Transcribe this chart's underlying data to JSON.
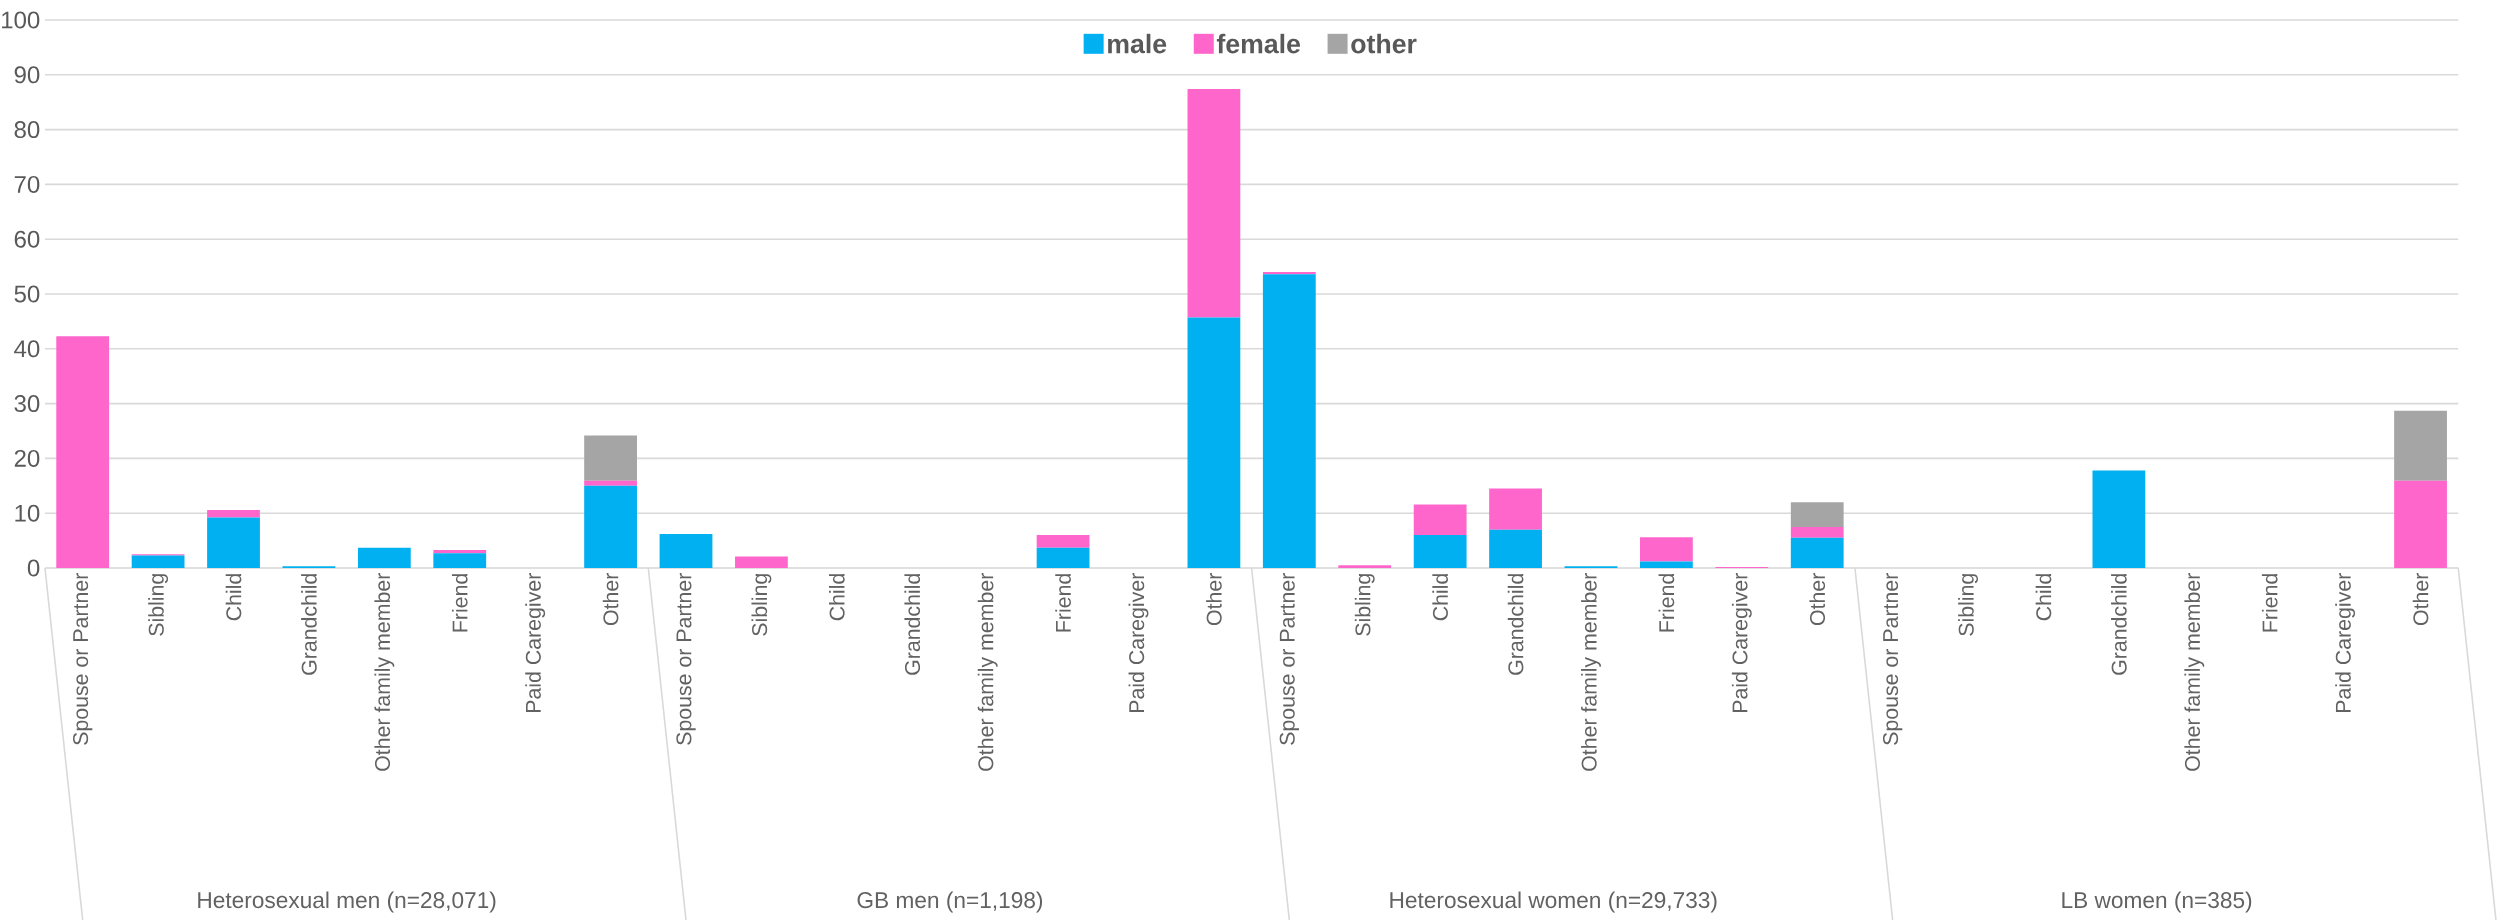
{
  "chart_data": {
    "type": "bar",
    "stacked": true,
    "categories": [
      "Spouse or Partner",
      "Sibling",
      "Child",
      "Grandchild",
      "Other family member",
      "Friend",
      "Paid Caregiver",
      "Other",
      "Spouse or Partner",
      "Sibling",
      "Child",
      "Grandchild",
      "Other family member",
      "Friend",
      "Paid Caregiver",
      "Other",
      "Spouse or Partner",
      "Sibling",
      "Child",
      "Grandchild",
      "Other family member",
      "Friend",
      "Paid Caregiver",
      "Other",
      "Spouse or Partner",
      "Sibling",
      "Child",
      "Grandchild",
      "Other family member",
      "Friend",
      "Paid Caregiver",
      "Other"
    ],
    "series": [
      {
        "name": "male",
        "color": "#00b0f0",
        "values": [
          0,
          2.3,
          9.2,
          0.3,
          3.7,
          2.7,
          0,
          15.0,
          6.2,
          0,
          0,
          0,
          0,
          3.7,
          0,
          45.7,
          53.6,
          0,
          6.0,
          7.0,
          0.3,
          1.2,
          0,
          5.5,
          0,
          0,
          0,
          17.8,
          0,
          0,
          0,
          0
        ]
      },
      {
        "name": "female",
        "color": "#ff66cc",
        "values": [
          42.3,
          0.2,
          1.4,
          0,
          0,
          0.6,
          0,
          0.9,
          0,
          2.1,
          0,
          0,
          0,
          2.3,
          0,
          41.7,
          0.4,
          0.5,
          5.6,
          7.5,
          0,
          4.4,
          0.2,
          2.0,
          0,
          0,
          0,
          0,
          0,
          0,
          0,
          15.9
        ]
      },
      {
        "name": "other",
        "color": "#a5a5a5",
        "values": [
          0,
          0,
          0,
          0,
          0,
          0,
          0,
          8.3,
          0,
          0,
          0,
          0,
          0,
          0,
          0,
          0,
          0,
          0,
          0,
          0,
          0,
          0,
          0,
          4.5,
          0,
          0,
          0,
          0,
          0,
          0,
          0,
          12.8
        ]
      }
    ],
    "ylim": [
      0,
      100
    ],
    "yticks": [
      0,
      10,
      20,
      30,
      40,
      50,
      60,
      70,
      80,
      90,
      100
    ],
    "grid": "y",
    "legend": "top",
    "annotations": [
      "Heterosexual men (n=28,071)",
      "GB men (n=1,198)",
      "Heterosexual women (n=29,733)",
      "LB women (n=385)"
    ]
  }
}
